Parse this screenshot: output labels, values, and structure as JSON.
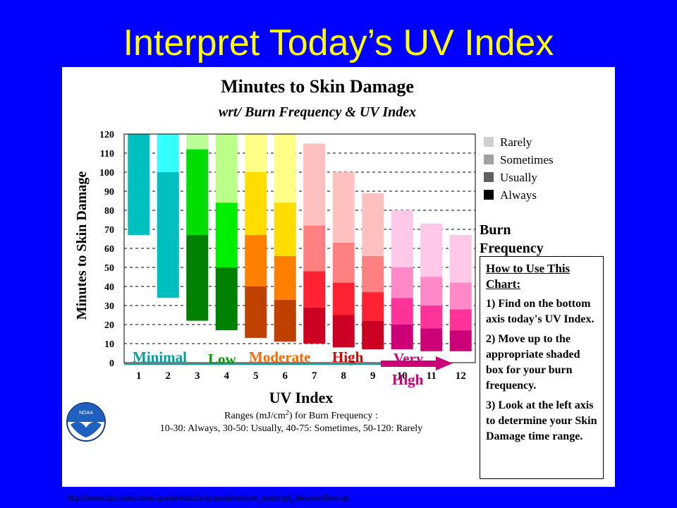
{
  "slide": {
    "title": "Interpret Today’s UV Index",
    "source_url": "http://www.cpc.ncep.noaa.gov/products/stratosphere/uv_index/gif_files/min2brn.gif"
  },
  "chart_data": {
    "type": "bar",
    "title": "Minutes to Skin Damage",
    "subtitle": "wrt/ Burn Frequency & UV Index",
    "xlabel": "UV Index",
    "ylabel": "Minutes to Skin Damage",
    "ylim": [
      0,
      120
    ],
    "yticks": [
      0,
      10,
      20,
      30,
      40,
      50,
      60,
      70,
      80,
      90,
      100,
      110,
      120
    ],
    "grid": "dashed horizontal",
    "categories": [
      "1",
      "2",
      "3",
      "4",
      "5",
      "6",
      "7",
      "8",
      "9",
      "10",
      "11",
      "12"
    ],
    "stack_order": [
      "Always",
      "Usually",
      "Sometimes",
      "Rarely"
    ],
    "bars": [
      {
        "x": "1",
        "bottom": 67,
        "boundaries": [
          67,
          67,
          67,
          120
        ],
        "colors": [
          "#00bfbf",
          "#00bfbf",
          "#00bfbf",
          "#00bfbf"
        ]
      },
      {
        "x": "2",
        "bottom": 34,
        "boundaries": [
          34,
          34,
          100,
          120
        ],
        "colors": [
          "#00bfbf",
          "#00bfbf",
          "#00bfbf",
          "#33ffff"
        ]
      },
      {
        "x": "3",
        "bottom": 22,
        "boundaries": [
          67,
          67,
          112,
          120
        ],
        "colors": [
          "#008000",
          "#008000",
          "#00dd00",
          "#bbff99"
        ]
      },
      {
        "x": "4",
        "bottom": 17,
        "boundaries": [
          50,
          50,
          84,
          120
        ],
        "colors": [
          "#008000",
          "#008000",
          "#00ee00",
          "#bbff88"
        ]
      },
      {
        "x": "5",
        "bottom": 13,
        "boundaries": [
          40,
          67,
          100,
          120
        ],
        "colors": [
          "#c04000",
          "#ff8000",
          "#ffdd00",
          "#ffff88"
        ]
      },
      {
        "x": "6",
        "bottom": 11,
        "boundaries": [
          33,
          56,
          84,
          120
        ],
        "colors": [
          "#c04000",
          "#ff8000",
          "#ffdd00",
          "#ffff88"
        ]
      },
      {
        "x": "7",
        "bottom": 10,
        "boundaries": [
          29,
          48,
          72,
          115
        ],
        "colors": [
          "#cc0022",
          "#ff2233",
          "#ff8080",
          "#ffc0c0"
        ]
      },
      {
        "x": "8",
        "bottom": 8,
        "boundaries": [
          25,
          42,
          63,
          100
        ],
        "colors": [
          "#cc0022",
          "#ff2233",
          "#ff8080",
          "#ffc0c0"
        ]
      },
      {
        "x": "9",
        "bottom": 7,
        "boundaries": [
          22,
          37,
          56,
          89
        ],
        "colors": [
          "#cc0022",
          "#ff2233",
          "#ff8080",
          "#ffc0c0"
        ]
      },
      {
        "x": "10",
        "bottom": 7,
        "boundaries": [
          20,
          34,
          50,
          80
        ],
        "colors": [
          "#cc0077",
          "#ff3399",
          "#ff88c8",
          "#ffc8e8"
        ]
      },
      {
        "x": "11",
        "bottom": 6,
        "boundaries": [
          18,
          30,
          45,
          73
        ],
        "colors": [
          "#cc0077",
          "#ff3399",
          "#ff88c8",
          "#ffc8e8"
        ]
      },
      {
        "x": "12",
        "bottom": 6,
        "boundaries": [
          17,
          28,
          42,
          67
        ],
        "colors": [
          "#cc0077",
          "#ff3399",
          "#ff88c8",
          "#ffc8e8"
        ]
      }
    ],
    "legend": {
      "placement": "top-right",
      "entries": [
        {
          "label": "Rarely",
          "color": "#d0d0d0"
        },
        {
          "label": "Sometimes",
          "color": "#a0a0a0"
        },
        {
          "label": "Usually",
          "color": "#606060"
        },
        {
          "label": "Always",
          "color": "#000000"
        }
      ],
      "title_line1": "Burn",
      "title_line2": "Frequency"
    },
    "categories_bands": [
      {
        "label": "Minimal",
        "color": "#00a0a0"
      },
      {
        "label": "Low",
        "color": "#00a000"
      },
      {
        "label": "Moderate",
        "color": "#ff6600"
      },
      {
        "label": "High",
        "color": "#dd0000"
      },
      {
        "label_line1": "Very",
        "label_line2": "High",
        "color": "#cc0077"
      }
    ],
    "ranges_line1": "Ranges (mJ/cm",
    "ranges_sup": "2",
    "ranges_suffix": ") for Burn Frequency :",
    "ranges_line2": "10-30: Always, 30-50: Usually, 40-75: Sometimes, 50-120: Rarely",
    "logo_text": "NOAA"
  },
  "howto": {
    "heading_line1": "How to Use This",
    "heading_line2": "Chart:",
    "step1": "1) Find on the bottom axis today's UV Index.",
    "step2": "2) Move up to the appropriate shaded box for your burn frequency.",
    "step3": "3) Look at the left axis to determine your Skin Damage time range."
  }
}
